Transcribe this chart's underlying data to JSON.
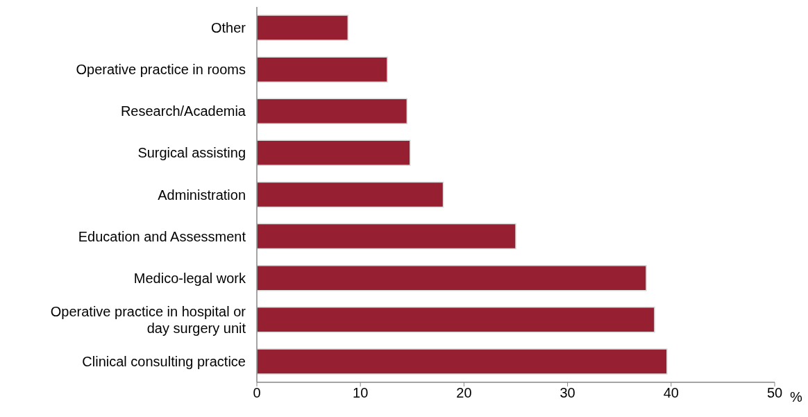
{
  "chart_data": {
    "type": "bar",
    "orientation": "horizontal",
    "categories": [
      "Other",
      "Operative practice in rooms",
      "Research/Academia",
      "Surgical assisting",
      "Administration",
      "Education and Assessment",
      "Medico-legal work",
      "Operative practice in hospital or day surgery unit",
      "Clinical consulting practice"
    ],
    "values": [
      8.8,
      12.6,
      14.5,
      14.8,
      18.0,
      25.0,
      37.6,
      38.4,
      39.6
    ],
    "color": "#961f32",
    "xlabel": "%",
    "xlim": [
      0,
      50
    ],
    "xticks": [
      0,
      10,
      20,
      30,
      40,
      50
    ]
  }
}
